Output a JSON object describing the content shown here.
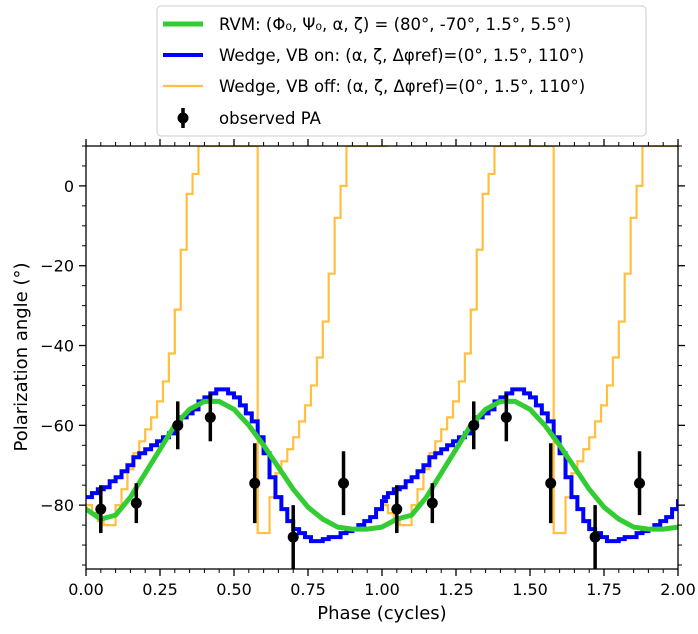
{
  "chart_data": {
    "type": "line",
    "xlabel": "Phase (cycles)",
    "ylabel": "Polarization angle (°)",
    "xlim": [
      0,
      2
    ],
    "ylim": [
      -96,
      10
    ],
    "x_ticks": [
      0,
      0.25,
      0.5,
      0.75,
      1.0,
      1.25,
      1.5,
      1.75,
      2.0
    ],
    "x_tick_labels": [
      "0.00",
      "0.25",
      "0.50",
      "0.75",
      "1.00",
      "1.25",
      "1.50",
      "1.75",
      "2.00"
    ],
    "y_ticks": [
      -80,
      -60,
      -40,
      -20,
      0
    ],
    "y_tick_labels": [
      "−80",
      "−60",
      "−40",
      "−20",
      "0"
    ],
    "grid": false,
    "legend_position": "top",
    "legend": [
      {
        "text": "RVM: (Φ₀, Ψ₀, α, ζ) = (80°, -70°, 1.5°, 5.5°)",
        "color": "#33cc33"
      },
      {
        "text": "Wedge, VB on: (α, ζ, Δφref)=(0°, 1.5°, 110°)",
        "color": "#0000ff"
      },
      {
        "text": "Wedge, VB off: (α, ζ, Δφref)=(0°, 1.5°, 110°)",
        "color": "#ffbf40"
      },
      {
        "text": "observed PA",
        "color": "#000000"
      }
    ],
    "series": [
      {
        "name": "RVM",
        "color": "#33cc33",
        "x": [
          0.0,
          0.05,
          0.1,
          0.15,
          0.2,
          0.25,
          0.3,
          0.35,
          0.4,
          0.45,
          0.5,
          0.55,
          0.6,
          0.65,
          0.7,
          0.75,
          0.8,
          0.85,
          0.9,
          0.95,
          1.0,
          1.05,
          1.1,
          1.15,
          1.2,
          1.25,
          1.3,
          1.35,
          1.4,
          1.45,
          1.5,
          1.55,
          1.6,
          1.65,
          1.7,
          1.75,
          1.8,
          1.85,
          1.9,
          1.95,
          2.0
        ],
        "y": [
          -81,
          -83.5,
          -82.5,
          -78,
          -72,
          -66,
          -60,
          -56,
          -54,
          -54,
          -56,
          -60,
          -65,
          -70.5,
          -76,
          -80.5,
          -83.5,
          -85.5,
          -86,
          -86,
          -85.5,
          -83.5,
          -82.5,
          -78,
          -72,
          -66,
          -60,
          -56,
          -54,
          -54,
          -56,
          -60,
          -65,
          -70.5,
          -76,
          -80.5,
          -83.5,
          -85.5,
          -86,
          -86,
          -85.5
        ]
      },
      {
        "name": "Wedge, VB on",
        "color": "#0000ff",
        "type": "step",
        "x": [
          0.0,
          0.02,
          0.04,
          0.06,
          0.08,
          0.1,
          0.12,
          0.14,
          0.16,
          0.18,
          0.2,
          0.22,
          0.24,
          0.26,
          0.28,
          0.3,
          0.32,
          0.34,
          0.36,
          0.38,
          0.4,
          0.42,
          0.44,
          0.46,
          0.48,
          0.5,
          0.52,
          0.54,
          0.56,
          0.58,
          0.6,
          0.62,
          0.64,
          0.66,
          0.68,
          0.7,
          0.72,
          0.74,
          0.76,
          0.78,
          0.8,
          0.82,
          0.84,
          0.86,
          0.88,
          0.9,
          0.92,
          0.94,
          0.96,
          0.98,
          1.0
        ],
        "y": [
          -78,
          -77,
          -76,
          -75.5,
          -74,
          -73,
          -71.5,
          -70,
          -68,
          -67,
          -66,
          -65,
          -64,
          -63,
          -62,
          -60,
          -58,
          -57,
          -56,
          -54,
          -53,
          -52,
          -51,
          -51,
          -52,
          -53,
          -55,
          -57,
          -59,
          -63,
          -67,
          -73,
          -78,
          -81,
          -84,
          -86,
          -87,
          -88,
          -89,
          -89,
          -88.5,
          -88,
          -88,
          -87,
          -86.5,
          -86,
          -85,
          -84,
          -83,
          -81,
          -79
        ]
      },
      {
        "name": "Wedge, VB off",
        "color": "#ffbf40",
        "type": "step",
        "x": [
          0.0,
          0.02,
          0.04,
          0.06,
          0.08,
          0.1,
          0.12,
          0.14,
          0.16,
          0.18,
          0.2,
          0.22,
          0.24,
          0.26,
          0.28,
          0.3,
          0.32,
          0.34,
          0.36,
          0.38,
          0.4,
          0.42,
          0.44,
          0.46,
          0.48,
          0.5,
          0.52,
          0.54,
          0.56,
          0.58,
          0.6,
          0.62,
          0.64,
          0.66,
          0.68,
          0.7,
          0.72,
          0.74,
          0.76,
          0.78,
          0.8,
          0.82,
          0.84,
          0.86,
          0.88,
          0.9,
          0.92,
          0.94,
          0.96,
          0.98,
          1.0
        ],
        "y": [
          -80,
          -82,
          -84,
          -85,
          -85,
          -80,
          -76,
          -71,
          -67,
          -64,
          -61,
          -58,
          -54,
          -49,
          -42,
          -31,
          -16,
          -2,
          3,
          10,
          10,
          10,
          10,
          10,
          10,
          10,
          10,
          10,
          10,
          -87,
          -87,
          -78,
          -72,
          -69,
          -66,
          -63,
          -59,
          -55,
          -50,
          -43,
          -34,
          -22,
          -8,
          0,
          10,
          10,
          10,
          10,
          10,
          10,
          10
        ]
      },
      {
        "name": "observed PA",
        "color": "#000000",
        "type": "errorbar",
        "x": [
          0.05,
          0.17,
          0.31,
          0.42,
          0.57,
          0.7,
          0.87,
          1.05,
          1.17,
          1.31,
          1.42,
          1.57,
          1.72,
          1.87
        ],
        "y": [
          -81,
          -79.5,
          -60,
          -58,
          -74.5,
          -88,
          -74.5,
          -81,
          -79.5,
          -60,
          -58,
          -74.5,
          -88,
          -74.5
        ],
        "yerr": [
          6,
          5,
          6,
          6,
          10,
          8,
          8,
          6,
          5,
          6,
          6,
          10,
          8,
          8
        ]
      }
    ]
  }
}
